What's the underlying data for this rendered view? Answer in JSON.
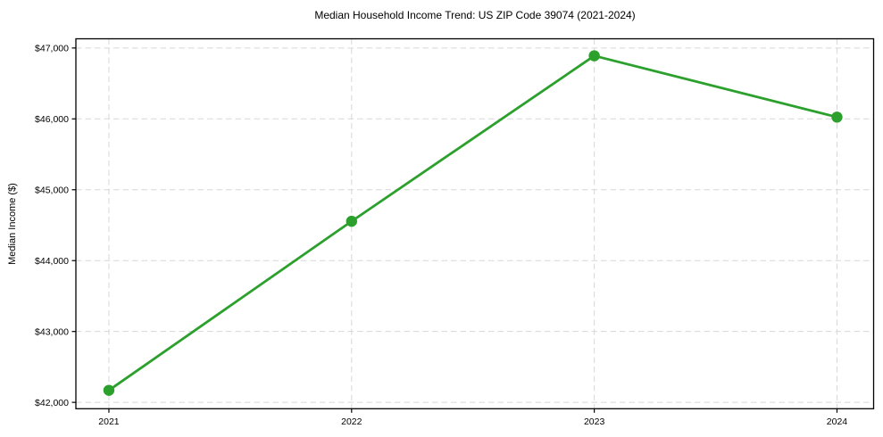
{
  "page": {
    "background_color": "#ffffff"
  },
  "chart_data": {
    "type": "line",
    "title": "Median Household Income Trend: US ZIP Code 39074 (2021-2024)",
    "xlabel": "",
    "ylabel": "Median Income ($)",
    "x": [
      2021,
      2022,
      2023,
      2024
    ],
    "x_tick_labels": [
      "2021",
      "2022",
      "2023",
      "2024"
    ],
    "series": [
      {
        "values": [
          42170,
          44555,
          46890,
          46025
        ],
        "color": "#2ca02c",
        "marker": "circle"
      }
    ],
    "y_ticks": [
      42000,
      43000,
      44000,
      45000,
      46000,
      47000
    ],
    "y_tick_labels": [
      "$42,000",
      "$43,000",
      "$44,000",
      "$45,000",
      "$46,000",
      "$47,000"
    ],
    "xlim": [
      2020.864,
      2024.151
    ],
    "ylim": [
      41910,
      47130
    ],
    "grid": "dashed",
    "grid_color": "#d7d7d7",
    "axis_color": "#000000",
    "text_color": "#000000",
    "legend": "none"
  }
}
